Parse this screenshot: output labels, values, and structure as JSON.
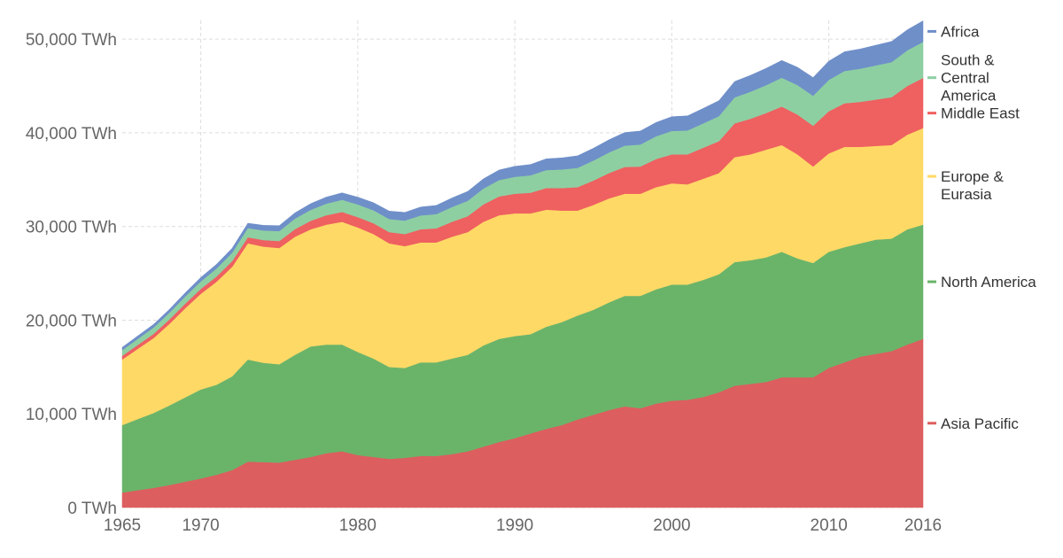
{
  "chart_data": {
    "type": "area",
    "stacked": true,
    "unit": "TWh",
    "x": [
      1965,
      1966,
      1967,
      1968,
      1969,
      1970,
      1971,
      1972,
      1973,
      1974,
      1975,
      1976,
      1977,
      1978,
      1979,
      1980,
      1981,
      1982,
      1983,
      1984,
      1985,
      1986,
      1987,
      1988,
      1989,
      1990,
      1991,
      1992,
      1993,
      1994,
      1995,
      1996,
      1997,
      1998,
      1999,
      2000,
      2001,
      2002,
      2003,
      2004,
      2005,
      2006,
      2007,
      2008,
      2009,
      2010,
      2011,
      2012,
      2013,
      2014,
      2015,
      2016
    ],
    "xlim": [
      1965,
      2016
    ],
    "ylim": [
      0,
      52000
    ],
    "x_ticks": [
      "1965",
      "1970",
      "1980",
      "1990",
      "2000",
      "2010",
      "2016"
    ],
    "y_ticks": [
      "0 TWh",
      "10,000 TWh",
      "20,000 TWh",
      "30,000 TWh",
      "40,000 TWh",
      "50,000 TWh"
    ],
    "grid": true,
    "legend_position": "right",
    "series": [
      {
        "name": "Asia Pacific",
        "color": "#dd5e5e",
        "values": [
          1600,
          1850,
          2100,
          2400,
          2750,
          3100,
          3500,
          4000,
          4900,
          4850,
          4800,
          5100,
          5400,
          5800,
          6000,
          5600,
          5400,
          5200,
          5300,
          5500,
          5500,
          5700,
          6000,
          6500,
          7000,
          7400,
          7900,
          8400,
          8800,
          9400,
          9900,
          10400,
          10800,
          10600,
          11100,
          11400,
          11500,
          11800,
          12300,
          13000,
          13200,
          13400,
          13900,
          13900,
          13900,
          14900,
          15500,
          16100,
          16400,
          16700,
          17400,
          18000
        ]
      },
      {
        "name": "North America",
        "color": "#6ab46a",
        "values": [
          7200,
          7600,
          8000,
          8500,
          9000,
          9500,
          9600,
          10000,
          10900,
          10600,
          10500,
          11200,
          11800,
          11600,
          11400,
          11000,
          10500,
          9800,
          9600,
          10000,
          10000,
          10200,
          10300,
          10800,
          11000,
          10900,
          10600,
          10900,
          11000,
          11100,
          11200,
          11500,
          11800,
          12000,
          12200,
          12400,
          12300,
          12500,
          12600,
          13200,
          13200,
          13300,
          13400,
          12700,
          12200,
          12400,
          12300,
          12100,
          12200,
          12000,
          12300,
          12200
        ]
      },
      {
        "name": "Europe & Eurasia",
        "color": "#ffd966",
        "values": [
          7000,
          7500,
          8000,
          8700,
          9500,
          10200,
          11000,
          11700,
          12400,
          12400,
          12400,
          12600,
          12500,
          12800,
          13100,
          13300,
          13300,
          13200,
          13000,
          12800,
          12800,
          13000,
          13100,
          13200,
          13200,
          13100,
          12900,
          12500,
          11900,
          11200,
          11200,
          11100,
          10900,
          10900,
          10900,
          10800,
          10700,
          10800,
          10800,
          11200,
          11300,
          11500,
          11400,
          11100,
          10300,
          10500,
          10700,
          10300,
          10000,
          10000,
          10100,
          10300
        ]
      },
      {
        "name": "Middle East",
        "color": "#ef6060",
        "values": [
          400,
          420,
          440,
          470,
          500,
          530,
          560,
          600,
          650,
          700,
          750,
          820,
          900,
          1000,
          1050,
          1100,
          1150,
          1200,
          1300,
          1400,
          1500,
          1600,
          1700,
          1850,
          2000,
          2100,
          2200,
          2300,
          2400,
          2500,
          2600,
          2700,
          2850,
          2900,
          3000,
          3100,
          3200,
          3300,
          3400,
          3600,
          3800,
          3900,
          4100,
          4250,
          4350,
          4500,
          4650,
          4800,
          4950,
          5100,
          5200,
          5350
        ]
      },
      {
        "name": "South & Central America",
        "color": "#8ecfa2",
        "values": [
          600,
          640,
          680,
          720,
          760,
          800,
          850,
          900,
          980,
          1020,
          1060,
          1120,
          1180,
          1240,
          1300,
          1350,
          1380,
          1400,
          1430,
          1480,
          1520,
          1580,
          1640,
          1700,
          1750,
          1800,
          1860,
          1920,
          1990,
          2060,
          2130,
          2200,
          2280,
          2350,
          2430,
          2500,
          2550,
          2600,
          2680,
          2780,
          2880,
          2980,
          3080,
          3150,
          3200,
          3350,
          3450,
          3550,
          3650,
          3750,
          3800,
          3850
        ]
      },
      {
        "name": "Africa",
        "color": "#6f8fc9",
        "values": [
          300,
          320,
          340,
          360,
          390,
          420,
          450,
          480,
          520,
          550,
          580,
          620,
          660,
          700,
          740,
          780,
          810,
          840,
          870,
          900,
          930,
          960,
          1000,
          1040,
          1080,
          1120,
          1160,
          1200,
          1240,
          1280,
          1320,
          1360,
          1400,
          1440,
          1480,
          1520,
          1560,
          1600,
          1650,
          1700,
          1750,
          1800,
          1850,
          1900,
          1950,
          2000,
          2050,
          2100,
          2150,
          2200,
          2200,
          2250
        ]
      }
    ],
    "legend_labels": [
      {
        "key": "africa",
        "lines": [
          "Africa"
        ]
      },
      {
        "key": "sca",
        "lines": [
          "South &",
          "Central",
          "America"
        ]
      },
      {
        "key": "me",
        "lines": [
          "Middle East"
        ]
      },
      {
        "key": "eu",
        "lines": [
          "Europe &",
          "Eurasia"
        ]
      },
      {
        "key": "na",
        "lines": [
          "North America"
        ]
      },
      {
        "key": "ap",
        "lines": [
          "Asia Pacific"
        ]
      }
    ]
  }
}
